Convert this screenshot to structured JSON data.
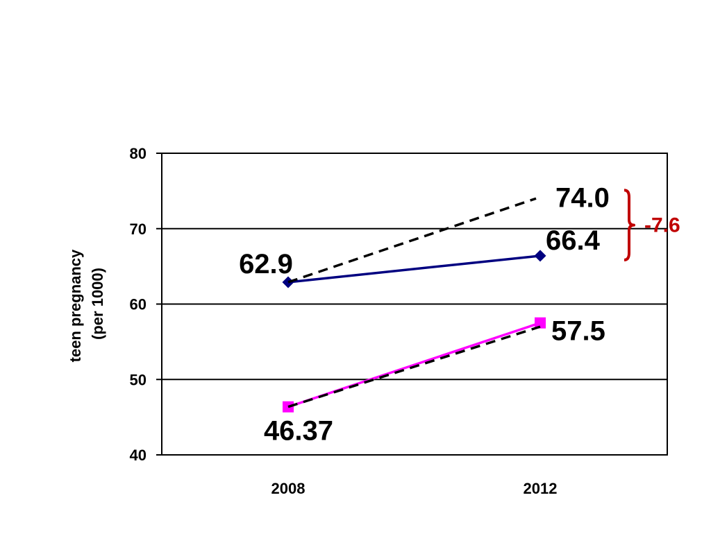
{
  "chart_data": {
    "type": "line",
    "title": "",
    "xlabel": "",
    "ylabel": "teen pregnancy",
    "ylabel_line2": "(per 1000)",
    "categories": [
      "2008",
      "2012"
    ],
    "ylim": [
      40,
      80
    ],
    "yticks": [
      "40",
      "50",
      "60",
      "70",
      "80"
    ],
    "grid": true,
    "series": [
      {
        "color": "#000080",
        "marker": "diamond",
        "line_style": "solid",
        "values": [
          62.9,
          66.4
        ],
        "labels": [
          "62.9",
          "66.4"
        ]
      },
      {
        "color": "#ff00ff",
        "marker": "square",
        "line_style": "solid",
        "values": [
          46.37,
          57.5
        ],
        "labels": [
          "46.37",
          "57.5"
        ]
      },
      {
        "color": "#000000",
        "marker": "none",
        "line_style": "dashed",
        "values": [
          62.9,
          74.0
        ],
        "labels": [
          "",
          "74.0"
        ]
      },
      {
        "color": "#000000",
        "marker": "none",
        "line_style": "dashed",
        "values": [
          46.37,
          57.0
        ],
        "labels": [
          "",
          ""
        ]
      }
    ],
    "annotation": {
      "text": "-7.6",
      "color": "#c00000",
      "range": [
        66.4,
        74.0
      ]
    }
  }
}
